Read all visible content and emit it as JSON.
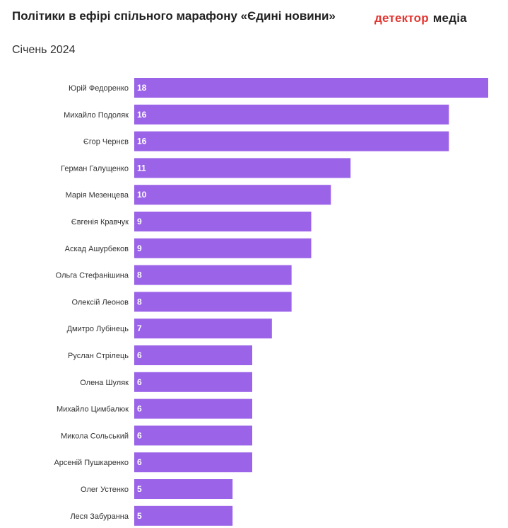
{
  "header": {
    "title": "Політики в ефірі спільного марафону «Єдині новини»",
    "subtitle": "Січень 2024",
    "logo_part1": "детектор",
    "logo_part2": "медіа"
  },
  "colors": {
    "bar": "#9b63e8",
    "logo_red": "#e3342f"
  },
  "chart_data": {
    "type": "bar",
    "orientation": "horizontal",
    "title": "Політики в ефірі спільного марафону «Єдині новини»",
    "subtitle": "Січень 2024",
    "categories": [
      "Юрій Федоренко",
      "Михайло Подоляк",
      "Єгор Чернєв",
      "Герман Галущенко",
      "Марія Мезенцева",
      "Євгенія Кравчук",
      "Аскад Ашурбеков",
      "Ольга Стефанішина",
      "Олексій Леонов",
      "Дмитро Лубінець",
      "Руслан Стрілець",
      "Олена Шуляк",
      "Михайло Цимбалюк",
      "Микола Сольський",
      "Арсеній Пушкаренко",
      "Олег Устенко",
      "Леся Забуранна"
    ],
    "values": [
      18,
      16,
      16,
      11,
      10,
      9,
      9,
      8,
      8,
      7,
      6,
      6,
      6,
      6,
      6,
      5,
      5
    ],
    "xlim": [
      0,
      18
    ],
    "grid": false,
    "legend": "none"
  }
}
